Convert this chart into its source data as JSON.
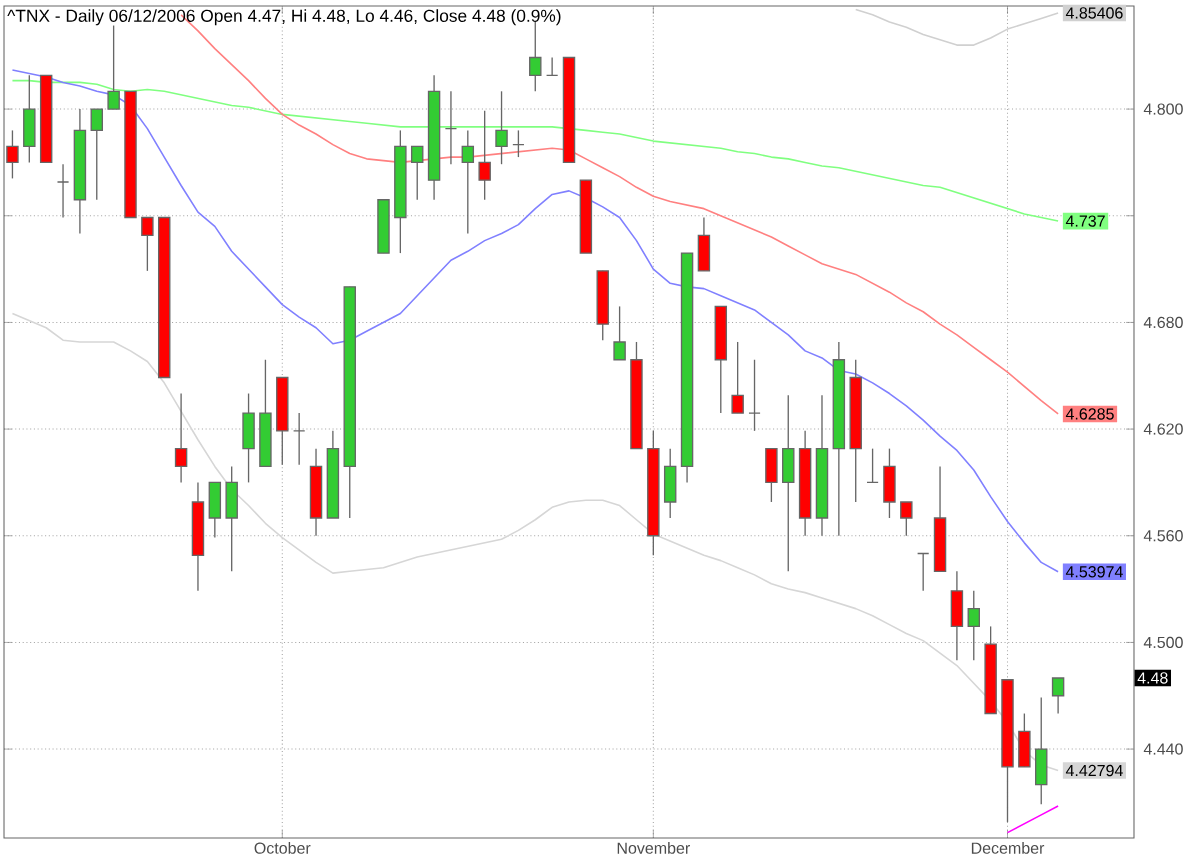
{
  "chart_data": {
    "type": "candlestick",
    "title": "^TNX - Daily 06/12/2006 Open 4.47, Hi 4.48, Lo 4.46, Close 4.48 (0.9%)",
    "categories": [
      null,
      null,
      null,
      null,
      null,
      null,
      null,
      null,
      null,
      null,
      null,
      null,
      null,
      null,
      null,
      null,
      "October",
      null,
      null,
      null,
      null,
      null,
      null,
      null,
      null,
      null,
      null,
      null,
      null,
      null,
      null,
      null,
      null,
      null,
      null,
      null,
      null,
      null,
      "November",
      null,
      null,
      null,
      null,
      null,
      null,
      null,
      null,
      null,
      null,
      null,
      null,
      null,
      null,
      null,
      null,
      null,
      null,
      null,
      null,
      "December",
      null,
      null,
      null,
      null,
      null,
      null,
      null
    ],
    "ylim": [
      4.39,
      4.858
    ],
    "yticks": [
      {
        "value": 4.44,
        "label": "4.440"
      },
      {
        "value": 4.5,
        "label": "4.500"
      },
      {
        "value": 4.56,
        "label": "4.560"
      },
      {
        "value": 4.62,
        "label": "4.620"
      },
      {
        "value": 4.68,
        "label": "4.680"
      },
      {
        "value": 4.74,
        "label": null
      },
      {
        "value": 4.8,
        "label": "4.800"
      }
    ],
    "grid": true,
    "series": [
      {
        "type": "line",
        "color": "#d0d0d0",
        "values": [
          null,
          null,
          null,
          null,
          null,
          null,
          null,
          null,
          null,
          null,
          null,
          null,
          null,
          null,
          null,
          null,
          null,
          null,
          null,
          null,
          null,
          null,
          null,
          null,
          null,
          null,
          null,
          null,
          null,
          null,
          null,
          null,
          null,
          null,
          null,
          null,
          null,
          null,
          null,
          null,
          null,
          null,
          null,
          null,
          null,
          null,
          null,
          null,
          null,
          null,
          4.856,
          4.853,
          4.849,
          4.846,
          4.842,
          4.839,
          4.836,
          4.836,
          4.84,
          4.845,
          4.848,
          4.851,
          4.85406,
          null,
          null,
          null,
          null
        ],
        "value_labels": [
          null,
          null,
          null,
          null,
          null,
          null,
          null,
          null,
          null,
          null,
          null,
          null,
          null,
          null,
          null,
          null,
          null,
          null,
          null,
          null,
          null,
          null,
          null,
          null,
          null,
          null,
          null,
          null,
          null,
          null,
          null,
          null,
          null,
          null,
          null,
          null,
          null,
          null,
          null,
          null,
          null,
          null,
          null,
          null,
          null,
          null,
          null,
          null,
          null,
          null,
          null,
          null,
          null,
          null,
          null,
          null,
          null,
          null,
          null,
          null,
          null,
          null,
          "4.85406",
          null,
          null,
          null,
          null
        ]
      },
      {
        "type": "line",
        "color": "#d6d6d6",
        "values": [
          4.685,
          4.681,
          4.677,
          4.67,
          4.669,
          4.669,
          4.669,
          4.664,
          4.658,
          4.646,
          4.63,
          4.614,
          4.599,
          4.586,
          4.577,
          4.567,
          4.559,
          4.552,
          4.545,
          4.539,
          4.54,
          4.541,
          4.542,
          4.545,
          4.548,
          4.55,
          4.552,
          4.554,
          4.556,
          4.558,
          4.563,
          4.569,
          4.576,
          4.579,
          4.58,
          4.58,
          4.577,
          4.569,
          4.561,
          4.557,
          4.553,
          4.549,
          4.546,
          4.542,
          4.538,
          4.533,
          4.53,
          4.528,
          4.525,
          4.522,
          4.519,
          4.515,
          4.51,
          4.505,
          4.501,
          4.494,
          4.487,
          4.477,
          4.467,
          4.455,
          4.439,
          4.431,
          4.42794,
          null,
          null,
          null,
          null
        ],
        "value_labels": [
          null,
          null,
          null,
          null,
          null,
          null,
          null,
          null,
          null,
          null,
          null,
          null,
          null,
          null,
          null,
          null,
          null,
          null,
          null,
          null,
          null,
          null,
          null,
          null,
          null,
          null,
          null,
          null,
          null,
          null,
          null,
          null,
          null,
          null,
          null,
          null,
          null,
          null,
          null,
          null,
          null,
          null,
          null,
          null,
          null,
          null,
          null,
          null,
          null,
          null,
          null,
          null,
          null,
          null,
          null,
          null,
          null,
          null,
          null,
          null,
          null,
          null,
          "4.42794",
          null,
          null,
          null,
          null
        ]
      },
      {
        "type": "line",
        "color": "#80ff80",
        "values": [
          4.816,
          4.816,
          4.815,
          4.815,
          4.815,
          4.814,
          4.811,
          4.81,
          4.811,
          4.81,
          4.808,
          4.806,
          4.804,
          4.802,
          4.801,
          4.799,
          4.797,
          4.796,
          4.795,
          4.794,
          4.793,
          4.792,
          4.791,
          4.79,
          4.79,
          4.79,
          4.79,
          4.79,
          4.79,
          4.79,
          4.79,
          4.79,
          4.79,
          4.789,
          4.788,
          4.787,
          4.786,
          4.784,
          4.782,
          4.781,
          4.78,
          4.779,
          4.778,
          4.776,
          4.775,
          4.773,
          4.772,
          4.77,
          4.768,
          4.767,
          4.765,
          4.763,
          4.761,
          4.759,
          4.757,
          4.756,
          4.753,
          4.75,
          4.747,
          4.744,
          4.741,
          4.739,
          4.737,
          null,
          null,
          null,
          null
        ],
        "value_labels": [
          null,
          null,
          null,
          null,
          null,
          null,
          null,
          null,
          null,
          null,
          null,
          null,
          null,
          null,
          null,
          null,
          null,
          null,
          null,
          null,
          null,
          null,
          null,
          null,
          null,
          null,
          null,
          null,
          null,
          null,
          null,
          null,
          null,
          null,
          null,
          null,
          null,
          null,
          null,
          null,
          null,
          null,
          null,
          null,
          null,
          null,
          null,
          null,
          null,
          null,
          null,
          null,
          null,
          null,
          null,
          null,
          null,
          null,
          null,
          null,
          null,
          null,
          "4.737",
          null,
          null,
          null,
          null
        ]
      },
      {
        "type": "line",
        "color": "#ff8080",
        "values": [
          null,
          null,
          null,
          null,
          null,
          null,
          null,
          null,
          null,
          null,
          4.853,
          4.844,
          4.834,
          4.825,
          4.816,
          4.806,
          4.797,
          4.791,
          4.786,
          4.78,
          4.775,
          4.772,
          4.771,
          4.77,
          4.771,
          4.772,
          4.773,
          4.773,
          4.774,
          4.775,
          4.776,
          4.777,
          4.778,
          4.777,
          4.772,
          4.767,
          4.762,
          4.756,
          4.751,
          4.748,
          4.746,
          4.744,
          4.74,
          4.736,
          4.732,
          4.728,
          4.723,
          4.718,
          4.713,
          4.71,
          4.707,
          4.702,
          4.697,
          4.691,
          4.686,
          4.679,
          4.673,
          4.666,
          4.659,
          4.652,
          4.644,
          4.636,
          4.6285,
          null,
          null,
          null,
          null
        ],
        "value_labels": [
          null,
          null,
          null,
          null,
          null,
          null,
          null,
          null,
          null,
          null,
          null,
          null,
          null,
          null,
          null,
          null,
          null,
          null,
          null,
          null,
          null,
          null,
          null,
          null,
          null,
          null,
          null,
          null,
          null,
          null,
          null,
          null,
          null,
          null,
          null,
          null,
          null,
          null,
          null,
          null,
          null,
          null,
          null,
          null,
          null,
          null,
          null,
          null,
          null,
          null,
          null,
          null,
          null,
          null,
          null,
          null,
          null,
          null,
          null,
          null,
          null,
          null,
          "4.6285",
          null,
          null,
          null,
          null
        ]
      },
      {
        "type": "line",
        "color": "#8080ff",
        "values": [
          4.822,
          4.82,
          4.818,
          4.815,
          4.813,
          4.81,
          4.808,
          4.802,
          4.789,
          4.773,
          4.757,
          4.742,
          4.734,
          4.72,
          4.71,
          4.7,
          4.69,
          4.683,
          4.677,
          4.668,
          4.67,
          4.675,
          4.68,
          4.685,
          4.695,
          4.705,
          4.715,
          4.72,
          4.726,
          4.73,
          4.735,
          4.744,
          4.752,
          4.754,
          4.75,
          4.745,
          4.739,
          4.726,
          4.71,
          4.702,
          4.7,
          4.699,
          4.695,
          4.691,
          4.687,
          4.68,
          4.673,
          4.664,
          4.66,
          4.653,
          4.651,
          4.646,
          4.64,
          4.633,
          4.625,
          4.616,
          4.608,
          4.597,
          4.582,
          4.568,
          4.556,
          4.545,
          4.53974,
          null,
          null,
          null,
          null
        ],
        "value_labels": [
          null,
          null,
          null,
          null,
          null,
          null,
          null,
          null,
          null,
          null,
          null,
          null,
          null,
          null,
          null,
          null,
          null,
          null,
          null,
          null,
          null,
          null,
          null,
          null,
          null,
          null,
          null,
          null,
          null,
          null,
          null,
          null,
          null,
          null,
          null,
          null,
          null,
          null,
          null,
          null,
          null,
          null,
          null,
          null,
          null,
          null,
          null,
          null,
          null,
          null,
          null,
          null,
          null,
          null,
          null,
          null,
          null,
          null,
          null,
          null,
          null,
          null,
          "4.53974",
          null,
          null,
          null,
          null
        ]
      },
      {
        "type": "line",
        "color": "#ff00ff",
        "values": [
          null,
          null,
          null,
          null,
          null,
          null,
          null,
          null,
          null,
          null,
          null,
          null,
          null,
          null,
          null,
          null,
          null,
          null,
          null,
          null,
          null,
          null,
          null,
          null,
          null,
          null,
          null,
          null,
          null,
          null,
          null,
          null,
          null,
          null,
          null,
          null,
          null,
          null,
          null,
          null,
          null,
          null,
          null,
          null,
          null,
          null,
          null,
          null,
          null,
          null,
          null,
          null,
          null,
          null,
          null,
          null,
          null,
          null,
          null,
          4.393,
          4.398,
          4.403,
          4.408,
          null,
          null,
          null,
          null
        ]
      },
      {
        "ohlc": [
          [
            4.779,
            4.788,
            4.761,
            4.77
          ],
          [
            4.779,
            4.819,
            4.77,
            4.8
          ],
          [
            4.819,
            4.819,
            4.77,
            4.77
          ],
          [
            4.759,
            4.769,
            4.739,
            4.759
          ],
          [
            4.749,
            4.8,
            4.73,
            4.788
          ],
          [
            4.788,
            4.8,
            4.749,
            4.8
          ],
          [
            4.8,
            4.847,
            4.8,
            4.81
          ],
          [
            4.81,
            4.81,
            4.739,
            4.739
          ],
          [
            4.739,
            4.739,
            4.709,
            4.729
          ],
          [
            4.739,
            4.739,
            4.649,
            4.649
          ],
          [
            4.609,
            4.64,
            4.59,
            4.599
          ],
          [
            4.579,
            4.59,
            4.529,
            4.549
          ],
          [
            4.57,
            4.59,
            4.559,
            4.59
          ],
          [
            4.57,
            4.599,
            4.54,
            4.59
          ],
          [
            4.609,
            4.64,
            4.59,
            4.629
          ],
          [
            4.599,
            4.659,
            4.599,
            4.629
          ],
          [
            4.649,
            4.649,
            4.6,
            4.619
          ],
          [
            4.619,
            4.629,
            4.6,
            4.619
          ],
          [
            4.599,
            4.609,
            4.56,
            4.57
          ],
          [
            4.57,
            4.619,
            4.57,
            4.609
          ],
          [
            4.599,
            4.7,
            4.57,
            4.7
          ],
          null,
          [
            4.719,
            4.749,
            4.719,
            4.749
          ],
          [
            4.739,
            4.788,
            4.719,
            4.779
          ],
          [
            4.77,
            4.779,
            4.749,
            4.779
          ],
          [
            4.76,
            4.819,
            4.749,
            4.81
          ],
          [
            4.789,
            4.81,
            4.769,
            4.789
          ],
          [
            4.77,
            4.788,
            4.73,
            4.779
          ],
          [
            4.77,
            4.799,
            4.749,
            4.76
          ],
          [
            4.779,
            4.81,
            4.769,
            4.788
          ],
          [
            4.78,
            4.788,
            4.773,
            4.78
          ],
          [
            4.819,
            4.849,
            4.81,
            4.829
          ],
          [
            4.819,
            4.829,
            4.819,
            4.819
          ],
          [
            4.829,
            4.829,
            4.77,
            4.77
          ],
          [
            4.76,
            4.76,
            4.719,
            4.719
          ],
          [
            4.709,
            4.709,
            4.67,
            4.679
          ],
          [
            4.659,
            4.689,
            4.659,
            4.669
          ],
          [
            4.659,
            4.669,
            4.609,
            4.609
          ],
          [
            4.609,
            4.619,
            4.549,
            4.56
          ],
          [
            4.579,
            4.609,
            4.57,
            4.599
          ],
          [
            4.599,
            4.719,
            4.59,
            4.719
          ],
          [
            4.729,
            4.739,
            4.709,
            4.709
          ],
          [
            4.689,
            4.689,
            4.629,
            4.659
          ],
          [
            4.639,
            4.669,
            4.629,
            4.629
          ],
          [
            4.629,
            4.659,
            4.619,
            4.629
          ],
          [
            4.609,
            4.609,
            4.579,
            4.59
          ],
          [
            4.59,
            4.639,
            4.54,
            4.609
          ],
          [
            4.609,
            4.619,
            4.56,
            4.57
          ],
          [
            4.57,
            4.639,
            4.56,
            4.609
          ],
          [
            4.609,
            4.669,
            4.56,
            4.659
          ],
          [
            4.649,
            4.659,
            4.579,
            4.609
          ],
          [
            4.59,
            4.609,
            4.59,
            4.59
          ],
          [
            4.599,
            4.609,
            4.57,
            4.579
          ],
          [
            4.579,
            4.579,
            4.56,
            4.57
          ],
          [
            4.55,
            4.55,
            4.529,
            4.55
          ],
          [
            4.57,
            4.599,
            4.54,
            4.54
          ],
          [
            4.529,
            4.54,
            4.49,
            4.509
          ],
          [
            4.509,
            4.529,
            4.49,
            4.519
          ],
          [
            4.499,
            4.509,
            4.46,
            4.46
          ],
          [
            4.479,
            4.479,
            4.399,
            4.43
          ],
          [
            4.45,
            4.46,
            4.43,
            4.43
          ],
          [
            4.42,
            4.469,
            4.409,
            4.44
          ],
          [
            4.47,
            4.48,
            4.46,
            4.48
          ],
          null,
          null,
          null,
          null
        ],
        "colors": [
          "#ff0000",
          "#33cc33",
          "#ff0000",
          "#666666",
          "#33cc33",
          "#33cc33",
          "#33cc33",
          "#ff0000",
          "#ff0000",
          "#ff0000",
          "#ff0000",
          "#ff0000",
          "#33cc33",
          "#33cc33",
          "#33cc33",
          "#33cc33",
          "#ff0000",
          "#666666",
          "#ff0000",
          "#33cc33",
          "#33cc33",
          null,
          "#33cc33",
          "#33cc33",
          "#33cc33",
          "#33cc33",
          "#666666",
          "#33cc33",
          "#ff0000",
          "#33cc33",
          "#666666",
          "#33cc33",
          "#666666",
          "#ff0000",
          "#ff0000",
          "#ff0000",
          "#33cc33",
          "#ff0000",
          "#ff0000",
          "#33cc33",
          "#33cc33",
          "#ff0000",
          "#ff0000",
          "#ff0000",
          "#666666",
          "#ff0000",
          "#33cc33",
          "#ff0000",
          "#33cc33",
          "#33cc33",
          "#ff0000",
          "#666666",
          "#ff0000",
          "#ff0000",
          "#666666",
          "#ff0000",
          "#ff0000",
          "#33cc33",
          "#ff0000",
          "#ff0000",
          "#ff0000",
          "#33cc33",
          "#33cc33",
          null,
          null,
          null,
          null
        ],
        "value_labels": [
          null,
          null,
          null,
          null,
          null,
          null,
          null,
          null,
          null,
          null,
          null,
          null,
          null,
          null,
          null,
          null,
          null,
          null,
          null,
          null,
          null,
          null,
          null,
          null,
          null,
          null,
          null,
          null,
          null,
          null,
          null,
          null,
          null,
          null,
          null,
          null,
          null,
          null,
          null,
          null,
          null,
          null,
          null,
          null,
          null,
          null,
          null,
          null,
          null,
          null,
          null,
          null,
          null,
          null,
          null,
          null,
          null,
          null,
          null,
          null,
          null,
          null,
          "4.48",
          null,
          null,
          null,
          null
        ]
      }
    ]
  }
}
